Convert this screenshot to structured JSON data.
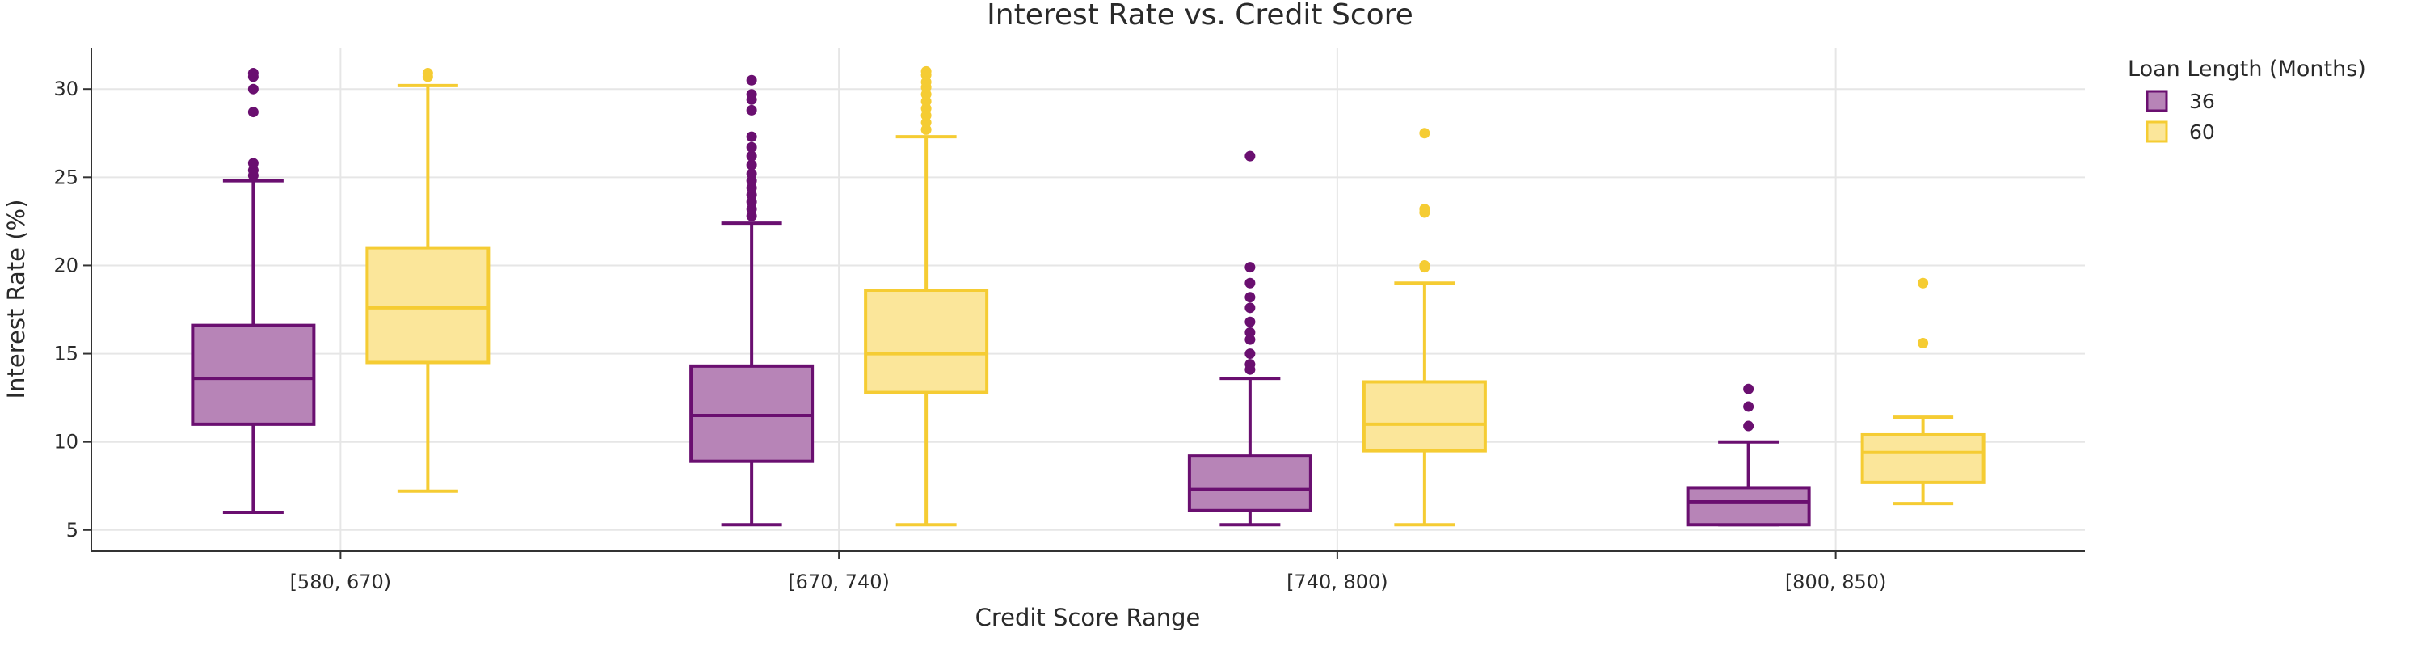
{
  "chart_data": {
    "type": "box",
    "title": "Interest Rate vs. Credit Score",
    "xlabel": "Credit Score Range",
    "ylabel": "Interest Rate (%)",
    "categories": [
      "[580, 670)",
      "[670, 740)",
      "[740, 800)",
      "[800, 850)"
    ],
    "ylim": [
      3.8,
      32.3
    ],
    "yticks": [
      5,
      10,
      15,
      20,
      25,
      30
    ],
    "grid": true,
    "legend": {
      "title": "Loan Length (Months)",
      "placement": "top-right outside plot"
    },
    "series": [
      {
        "name": "36",
        "color": "#6a0f70",
        "fill": "#b784b7",
        "boxes": [
          {
            "category": "[580, 670)",
            "min": 6.0,
            "q1": 11.0,
            "median": 13.6,
            "q3": 16.6,
            "max": 24.8,
            "outliers": [
              25.1,
              25.4,
              25.8,
              28.7,
              30.0,
              30.7,
              30.9
            ]
          },
          {
            "category": "[670, 740)",
            "min": 5.3,
            "q1": 8.9,
            "median": 11.5,
            "q3": 14.3,
            "max": 22.4,
            "outliers": [
              22.8,
              23.2,
              23.6,
              24.0,
              24.4,
              24.8,
              25.2,
              25.7,
              26.2,
              26.7,
              27.3,
              28.8,
              29.4,
              29.7,
              30.5
            ]
          },
          {
            "category": "[740, 800)",
            "min": 5.3,
            "q1": 6.1,
            "median": 7.3,
            "q3": 9.2,
            "max": 13.6,
            "outliers": [
              14.1,
              14.4,
              15.0,
              15.8,
              16.2,
              16.8,
              17.6,
              18.2,
              19.0,
              19.9,
              26.2
            ]
          },
          {
            "category": "[800, 850)",
            "min": 5.3,
            "q1": 5.3,
            "median": 6.6,
            "q3": 7.4,
            "max": 10.0,
            "outliers": [
              10.9,
              12.0,
              13.0
            ]
          }
        ]
      },
      {
        "name": "60",
        "color": "#f5cc33",
        "fill": "#fbe69a",
        "boxes": [
          {
            "category": "[580, 670)",
            "min": 7.2,
            "q1": 14.5,
            "median": 17.6,
            "q3": 21.0,
            "max": 30.2,
            "outliers": [
              30.7,
              30.9
            ]
          },
          {
            "category": "[670, 740)",
            "min": 5.3,
            "q1": 12.8,
            "median": 15.0,
            "q3": 18.6,
            "max": 27.3,
            "outliers": [
              27.7,
              28.1,
              28.5,
              28.9,
              29.3,
              29.7,
              30.1,
              30.4,
              30.8,
              31.0
            ]
          },
          {
            "category": "[740, 800)",
            "min": 5.3,
            "q1": 9.5,
            "median": 11.0,
            "q3": 13.4,
            "max": 19.0,
            "outliers": [
              19.9,
              20.0,
              23.0,
              23.2,
              27.5
            ]
          },
          {
            "category": "[800, 850)",
            "min": 6.5,
            "q1": 7.7,
            "median": 9.4,
            "q3": 10.4,
            "max": 11.4,
            "outliers": [
              15.6,
              19.0
            ]
          }
        ]
      }
    ]
  }
}
